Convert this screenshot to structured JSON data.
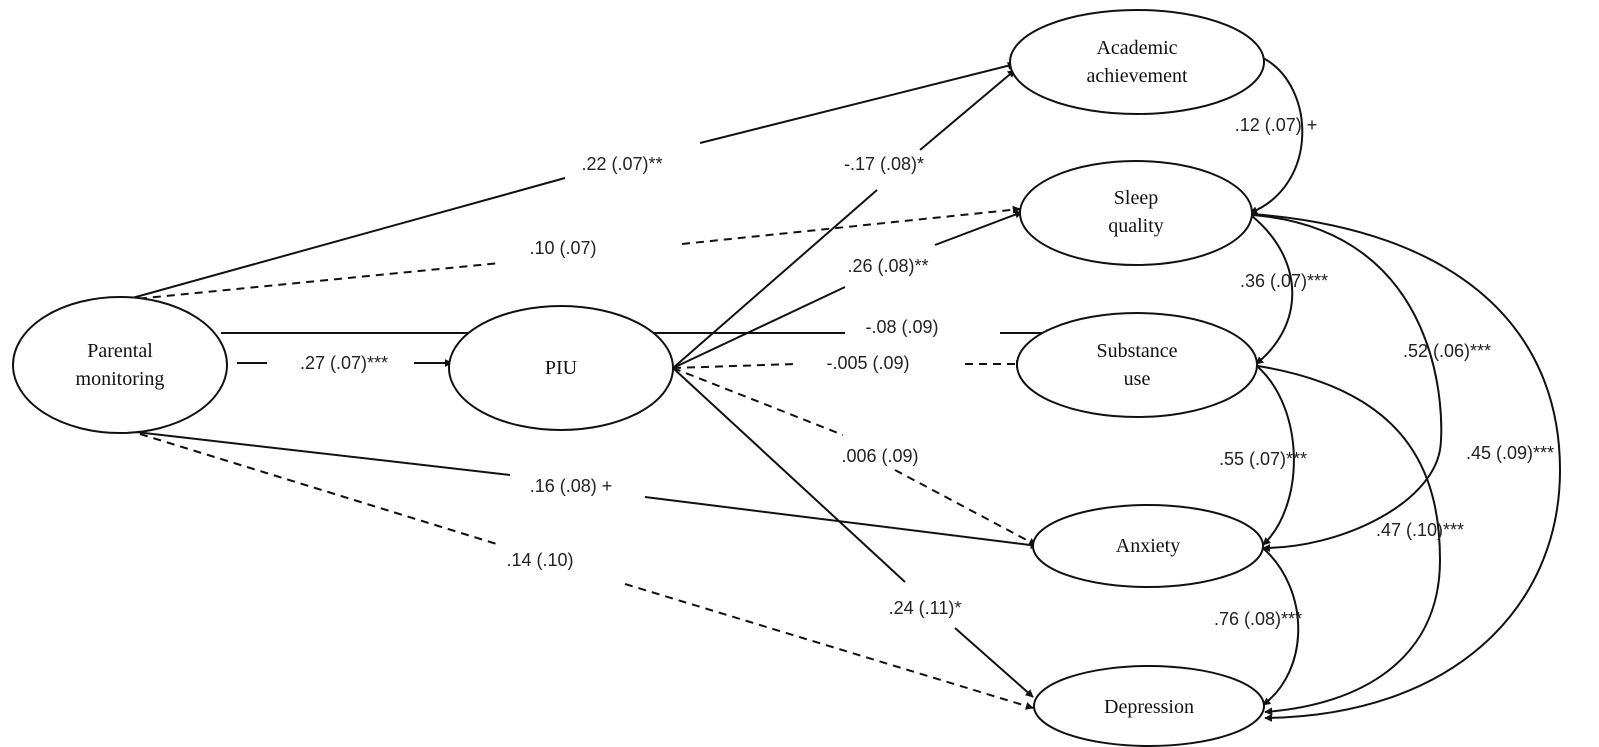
{
  "nodes": {
    "parental": {
      "lines": [
        "Parental",
        "monitoring"
      ]
    },
    "piu": {
      "lines": [
        "PIU"
      ]
    },
    "academic": {
      "lines": [
        "Academic",
        "achievement"
      ]
    },
    "sleep": {
      "lines": [
        "Sleep",
        "quality"
      ]
    },
    "substance": {
      "lines": [
        "Substance",
        "use"
      ]
    },
    "anxiety": {
      "lines": [
        "Anxiety"
      ]
    },
    "depression": {
      "lines": [
        "Depression"
      ]
    }
  },
  "paths": {
    "pm_academic": {
      "label": ".22 (.07)**",
      "style": "solid"
    },
    "pm_sleep": {
      "label": ".10 (.07)",
      "style": "dashed"
    },
    "pm_piu": {
      "label": ".27 (.07)***",
      "style": "solid"
    },
    "pm_substance": {
      "label": "-.08 (.09)",
      "style": "solid"
    },
    "pm_anxiety": {
      "label": ".16 (.08) +",
      "style": "solid"
    },
    "pm_depression": {
      "label": ".14 (.10)",
      "style": "dashed"
    },
    "piu_academic": {
      "label": "-.17 (.08)*",
      "style": "solid"
    },
    "piu_sleep": {
      "label": ".26 (.08)**",
      "style": "solid"
    },
    "piu_substance": {
      "label": "-.005 (.09)",
      "style": "dashed"
    },
    "piu_anxiety": {
      "label": ".006 (.09)",
      "style": "dashed"
    },
    "piu_depression": {
      "label": ".24 (.11)*",
      "style": "solid"
    }
  },
  "covariances": {
    "academic_sleep": {
      "label": ".12 (.07) +"
    },
    "sleep_substance": {
      "label": ".36 (.07)***"
    },
    "sleep_anxiety": {
      "label": ".52 (.06)***"
    },
    "sleep_depression": {
      "label": ".45 (.09)***"
    },
    "substance_anxiety": {
      "label": ".55 (.07)***"
    },
    "substance_depression": {
      "label": ".47 (.10)***"
    },
    "anxiety_depression": {
      "label": ".76 (.08)***"
    }
  }
}
